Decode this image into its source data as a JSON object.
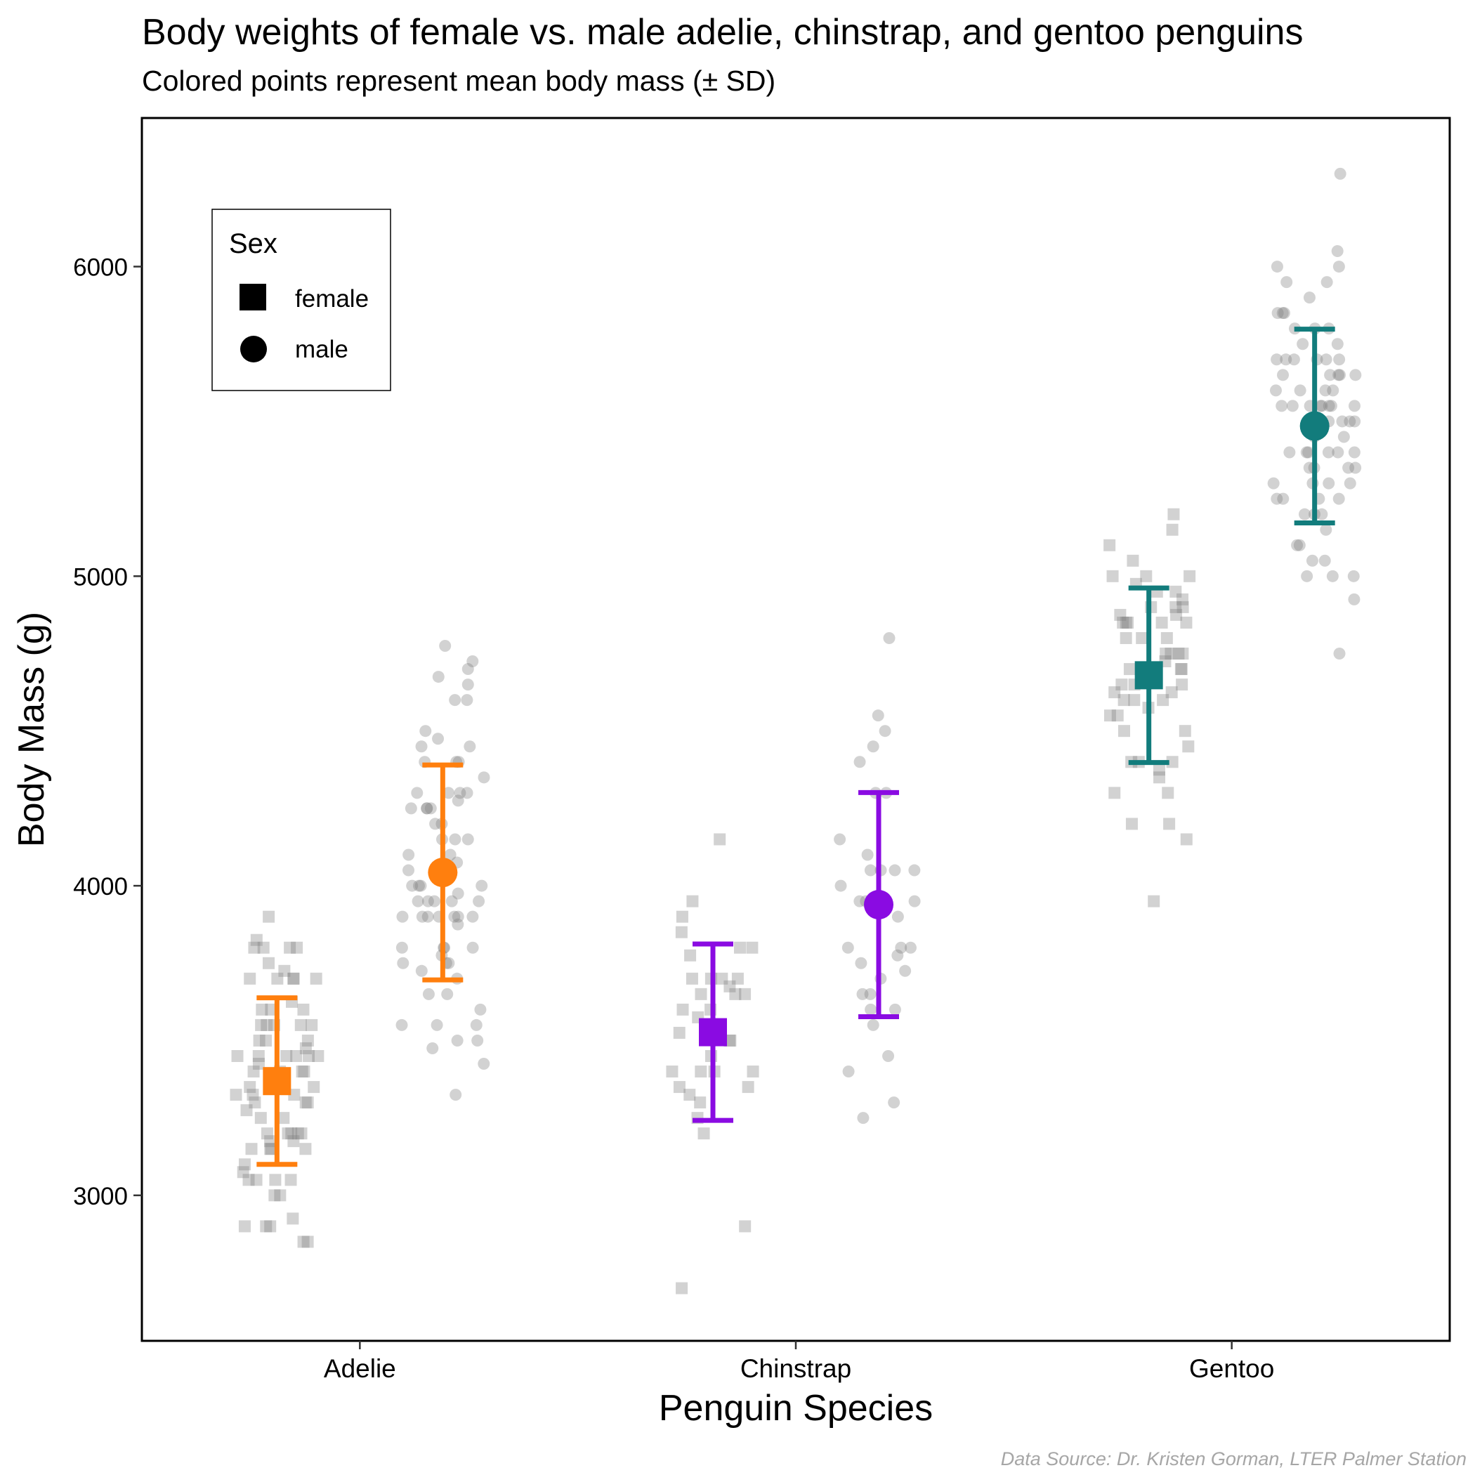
{
  "title": "Body weights of female vs. male adelie, chinstrap, and gentoo penguins",
  "subtitle": "Colored points represent mean body mass (± SD)",
  "caption": "Data Source: Dr. Kristen Gorman, LTER Palmer Station",
  "legend": {
    "title": "Sex",
    "items": [
      {
        "label": "female",
        "shape": "square"
      },
      {
        "label": "male",
        "shape": "circle"
      }
    ]
  },
  "chart_data": {
    "type": "scatter",
    "xlabel": "Penguin Species",
    "ylabel": "Body Mass (g)",
    "categories": [
      "Adelie",
      "Chinstrap",
      "Gentoo"
    ],
    "ylim": [
      2530,
      6480
    ],
    "yticks": [
      3000,
      4000,
      5000,
      6000
    ],
    "grid": false,
    "legend_position": "top-left",
    "colors": {
      "Adelie": "#ff7f0e",
      "Chinstrap": "#8a0be2",
      "Gentoo": "#127c7c",
      "raw": "#7f7f7f"
    },
    "summary": [
      {
        "species": "Adelie",
        "sex": "female",
        "mean": 3369,
        "sd": 269
      },
      {
        "species": "Adelie",
        "sex": "male",
        "mean": 4043,
        "sd": 347
      },
      {
        "species": "Chinstrap",
        "sex": "female",
        "mean": 3527,
        "sd": 285
      },
      {
        "species": "Chinstrap",
        "sex": "male",
        "mean": 3939,
        "sd": 362
      },
      {
        "species": "Gentoo",
        "sex": "female",
        "mean": 4680,
        "sd": 282
      },
      {
        "species": "Gentoo",
        "sex": "male",
        "mean": 5485,
        "sd": 313
      }
    ],
    "raw": [
      {
        "species": "Adelie",
        "sex": "female",
        "values": [
          3800,
          3250,
          3200,
          3450,
          3625,
          3200,
          3700,
          3450,
          3325,
          3400,
          3800,
          3800,
          3200,
          3150,
          3250,
          3300,
          3325,
          3550,
          3300,
          3150,
          3100,
          3000,
          3450,
          3500,
          3450,
          2900,
          3550,
          2850,
          3150,
          3600,
          2850,
          3350,
          3050,
          3600,
          3550,
          3700,
          3700,
          3550,
          3200,
          3800,
          3350,
          3500,
          3600,
          3550,
          3400,
          3300,
          3700,
          2900,
          3725,
          3075,
          2925,
          3750,
          3175,
          3825,
          3200,
          3900,
          2900,
          3350,
          3150,
          3450,
          3050,
          3275,
          3050,
          3325,
          3500,
          3425,
          3175,
          3400,
          3400,
          3050,
          3000,
          3475,
          3450,
          3700
        ]
      },
      {
        "species": "Adelie",
        "sex": "male",
        "values": [
          3750,
          3650,
          4675,
          3800,
          4400,
          4500,
          4200,
          3600,
          3950,
          3800,
          3550,
          3950,
          3900,
          3900,
          4150,
          3950,
          4650,
          3900,
          4400,
          4600,
          3425,
          4150,
          4300,
          4050,
          3700,
          3800,
          3750,
          4400,
          4050,
          3950,
          4100,
          4450,
          3900,
          4150,
          4250,
          3900,
          4000,
          4700,
          4200,
          3550,
          3800,
          3950,
          4300,
          4450,
          4300,
          4350,
          4100,
          4725,
          4250,
          3550,
          3900,
          4775,
          4600,
          4275,
          4075,
          3775,
          3325,
          3500,
          3875,
          4000,
          4300,
          4000,
          3500,
          4475,
          3900,
          3975,
          4250,
          3475,
          3725,
          3650,
          4250,
          3750,
          4000
        ]
      },
      {
        "species": "Chinstrap",
        "sex": "female",
        "values": [
          3500,
          3400,
          3800,
          3700,
          3575,
          3700,
          3450,
          3600,
          2900,
          3300,
          3400,
          3700,
          3200,
          3350,
          3900,
          3850,
          2700,
          3650,
          3500,
          3675,
          3400,
          3325,
          3600,
          3350,
          3250,
          3525,
          3650,
          3650,
          3400,
          3775,
          3700,
          4150,
          3800,
          3950
        ]
      },
      {
        "species": "Chinstrap",
        "sex": "male",
        "values": [
          3900,
          3650,
          3725,
          3750,
          3700,
          3775,
          4050,
          4050,
          3300,
          4400,
          3400,
          3800,
          4150,
          3800,
          4550,
          4300,
          4100,
          3600,
          4800,
          4500,
          3950,
          3550,
          4450,
          4300,
          3250,
          3950,
          4050,
          3450,
          4050,
          3800,
          3950,
          4000,
          3600,
          3650
        ]
      },
      {
        "species": "Gentoo",
        "sex": "female",
        "values": [
          4500,
          4450,
          4550,
          4800,
          4400,
          4650,
          4650,
          4200,
          4150,
          4800,
          5000,
          4400,
          5000,
          4600,
          4700,
          5050,
          5150,
          4950,
          4350,
          3950,
          4300,
          4900,
          4200,
          5100,
          4850,
          4400,
          4900,
          4300,
          4850,
          4900,
          4700,
          4500,
          4550,
          4800,
          4750,
          5200,
          4700,
          4600,
          4750,
          4625,
          4725,
          4750,
          4600,
          4875,
          4950,
          4750,
          4850,
          4875,
          4625,
          4850,
          4975,
          4700,
          4575,
          5000,
          4650,
          4375,
          4925,
          4850
        ]
      },
      {
        "species": "Gentoo",
        "sex": "male",
        "values": [
          5700,
          5700,
          5400,
          5200,
          5150,
          5550,
          5850,
          6300,
          5350,
          5700,
          5050,
          5100,
          5650,
          5550,
          5250,
          6050,
          5400,
          5250,
          5350,
          5700,
          4750,
          5550,
          5400,
          5300,
          5300,
          5000,
          5050,
          5000,
          5550,
          5300,
          5650,
          5700,
          5800,
          5550,
          5000,
          5100,
          5800,
          6000,
          5950,
          5450,
          5350,
          5600,
          5300,
          5550,
          5400,
          5650,
          5200,
          4925,
          5250,
          5600,
          5500,
          5500,
          5950,
          5500,
          5850,
          6000,
          5750,
          5400,
          5450,
          5350,
          5500,
          5600,
          5800,
          5250,
          5700,
          5650,
          5400,
          5550,
          5850,
          5500,
          5900,
          5600,
          5550,
          5650,
          5750,
          5200
        ]
      }
    ]
  }
}
